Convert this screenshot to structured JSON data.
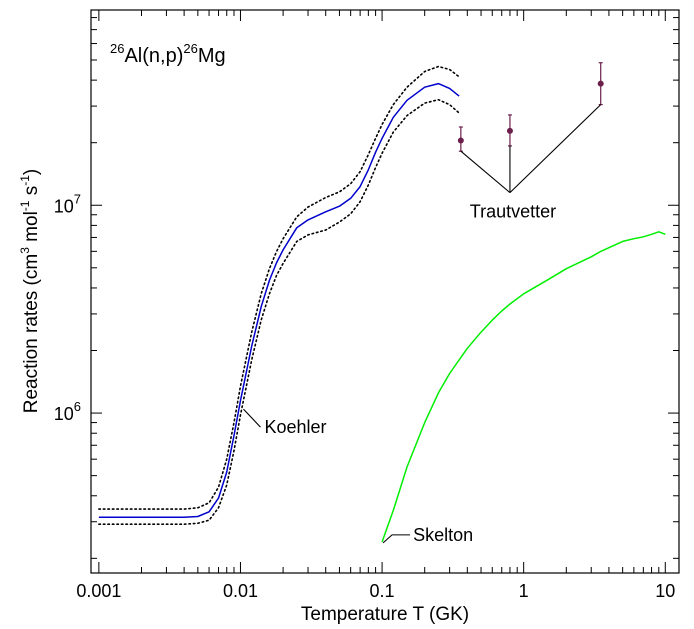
{
  "chart_data": {
    "type": "line",
    "title": {
      "sup1": "26",
      "main1": "Al(n,p)",
      "sup2": "26",
      "main2": "Mg"
    },
    "xlabel": "Temperature T (GK)",
    "ylabel": {
      "p1": "Reaction rates (cm",
      "s1": "3",
      "p2": " mol",
      "s2": "-1",
      "p3": " s",
      "s3": "-1",
      "p4": ")"
    },
    "x_scale": "log",
    "y_scale": "log",
    "xlim": [
      0.00088,
      12.5
    ],
    "ylim": [
      170000,
      87000000
    ],
    "x_ticks": [
      {
        "value": 0.001,
        "label": "0.001"
      },
      {
        "value": 0.01,
        "label": "0.01"
      },
      {
        "value": 0.1,
        "label": "0.1"
      },
      {
        "value": 1,
        "label": "1"
      },
      {
        "value": 10,
        "label": "10"
      }
    ],
    "y_ticks": [
      {
        "value": 1000000,
        "base": "10",
        "exp": "6"
      },
      {
        "value": 10000000,
        "base": "10",
        "exp": "7"
      }
    ],
    "grid": false,
    "series": [
      {
        "name": "Koehler",
        "color": "#0000cc",
        "style": "solid",
        "x": [
          0.001,
          0.002,
          0.003,
          0.004,
          0.005,
          0.006,
          0.007,
          0.008,
          0.009,
          0.01,
          0.012,
          0.014,
          0.016,
          0.018,
          0.02,
          0.025,
          0.03,
          0.04,
          0.05,
          0.06,
          0.07,
          0.08,
          0.09,
          0.1,
          0.12,
          0.15,
          0.2,
          0.25,
          0.3,
          0.35
        ],
        "y": [
          315000,
          315000,
          315000,
          315000,
          318000,
          335000,
          390000,
          520000,
          780000,
          1150000,
          2100000,
          3250000,
          4350000,
          5300000,
          6100000,
          7800000,
          8500000,
          9300000,
          9900000,
          10800000,
          12300000,
          14800000,
          18000000,
          21000000,
          26500000,
          32000000,
          37000000,
          38500000,
          36500000,
          33500000
        ]
      },
      {
        "name": "Koehler upper",
        "color": "#000000",
        "style": "dotted",
        "x": [
          0.001,
          0.002,
          0.003,
          0.004,
          0.005,
          0.006,
          0.007,
          0.008,
          0.009,
          0.01,
          0.012,
          0.014,
          0.016,
          0.018,
          0.02,
          0.025,
          0.03,
          0.04,
          0.05,
          0.06,
          0.07,
          0.08,
          0.09,
          0.1,
          0.12,
          0.15,
          0.2,
          0.25,
          0.3,
          0.35
        ],
        "y": [
          345000,
          345000,
          345000,
          345000,
          350000,
          370000,
          440000,
          600000,
          900000,
          1350000,
          2450000,
          3750000,
          4950000,
          6000000,
          6900000,
          8800000,
          9800000,
          10900000,
          11600000,
          12700000,
          14500000,
          17500000,
          21000000,
          24500000,
          30500000,
          37000000,
          44000000,
          46500000,
          45000000,
          41500000
        ]
      },
      {
        "name": "Koehler lower",
        "color": "#000000",
        "style": "dotted",
        "x": [
          0.001,
          0.002,
          0.003,
          0.004,
          0.005,
          0.006,
          0.007,
          0.008,
          0.009,
          0.01,
          0.012,
          0.014,
          0.016,
          0.018,
          0.02,
          0.025,
          0.03,
          0.04,
          0.05,
          0.06,
          0.07,
          0.08,
          0.09,
          0.1,
          0.12,
          0.15,
          0.2,
          0.25,
          0.3,
          0.35
        ],
        "y": [
          292000,
          292000,
          292000,
          292000,
          295000,
          305000,
          350000,
          450000,
          660000,
          980000,
          1800000,
          2800000,
          3750000,
          4600000,
          5250000,
          6700000,
          7200000,
          7600000,
          8300000,
          9100000,
          10400000,
          12500000,
          15200000,
          17800000,
          22500000,
          27000000,
          31000000,
          32200000,
          30500000,
          27800000
        ]
      },
      {
        "name": "Skelton",
        "color": "#00ee00",
        "style": "solid",
        "x": [
          0.1,
          0.12,
          0.15,
          0.2,
          0.25,
          0.3,
          0.4,
          0.5,
          0.6,
          0.7,
          0.8,
          1.0,
          1.5,
          2.0,
          3.0,
          3.5,
          4.0,
          5.0,
          6.0,
          7.0,
          8.0,
          9.0,
          10.0
        ],
        "y": [
          240000,
          340000,
          550000,
          900000,
          1250000,
          1550000,
          2050000,
          2450000,
          2800000,
          3100000,
          3350000,
          3750000,
          4400000,
          4950000,
          5650000,
          6000000,
          6250000,
          6700000,
          6900000,
          7050000,
          7250000,
          7450000,
          7250000
        ]
      }
    ],
    "points": {
      "name": "Trautvetter",
      "color": "#6b1f4a",
      "items": [
        {
          "x": 0.36,
          "y": 20500000,
          "lo": 18200000,
          "hi": 23800000
        },
        {
          "x": 0.8,
          "y": 22800000,
          "lo": 19300000,
          "hi": 27200000
        },
        {
          "x": 3.5,
          "y": 38500000,
          "lo": 30500000,
          "hi": 48500000
        }
      ]
    },
    "annotations": {
      "trautvetter": {
        "text": "Trautvetter",
        "hub_x": 0.8,
        "hub_y": 11500000
      },
      "koehler": {
        "text": "Koehler",
        "x": 0.01,
        "y": 1080000
      },
      "skelton": {
        "text": "Skelton",
        "x": 0.1,
        "y": 240000
      }
    }
  }
}
